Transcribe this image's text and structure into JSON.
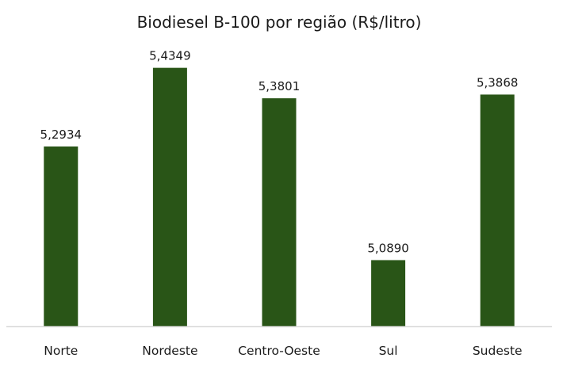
{
  "chart_data": {
    "type": "bar",
    "title": "Biodiesel B-100 por região (R$/litro)",
    "xlabel": "",
    "ylabel": "",
    "categories": [
      "Norte",
      "Nordeste",
      "Centro-Oeste",
      "Sul",
      "Sudeste"
    ],
    "values": [
      5.2934,
      5.4349,
      5.3801,
      5.089,
      5.3868
    ],
    "value_labels": [
      "5,2934",
      "5,4349",
      "5,3801",
      "5,0890",
      "5,3868"
    ],
    "ylim": [
      4.97,
      5.47
    ],
    "grid": false,
    "legend": "none",
    "colors": {
      "bar": "#295517",
      "axis": "#d9d9d9",
      "text": "#1a1a1a"
    }
  }
}
